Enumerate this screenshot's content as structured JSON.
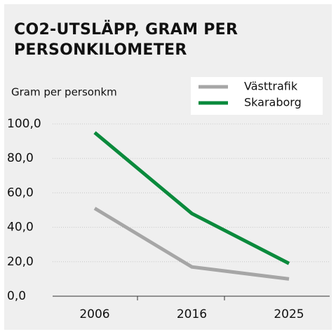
{
  "chart_data": {
    "type": "line",
    "title": "CO2-UTSLÄPP, GRAM PER PERSONKILOMETER",
    "y_label": "Gram per personkm",
    "categories": [
      "2006",
      "2016",
      "2025"
    ],
    "series": [
      {
        "name": "Västtrafik",
        "color": "#a6a6a6",
        "values": [
          51,
          17,
          10
        ]
      },
      {
        "name": "Skaraborg",
        "color": "#0a8a3c",
        "values": [
          95,
          48,
          19
        ]
      }
    ],
    "ylim": [
      0,
      100
    ],
    "yticks": [
      {
        "value": 0,
        "label": "0,0"
      },
      {
        "value": 20,
        "label": "20,0"
      },
      {
        "value": 40,
        "label": "40,0"
      },
      {
        "value": 60,
        "label": "60,0"
      },
      {
        "value": 80,
        "label": "80,0"
      },
      {
        "value": 100,
        "label": "100,0"
      }
    ],
    "grid": true,
    "legend": "top-right"
  }
}
